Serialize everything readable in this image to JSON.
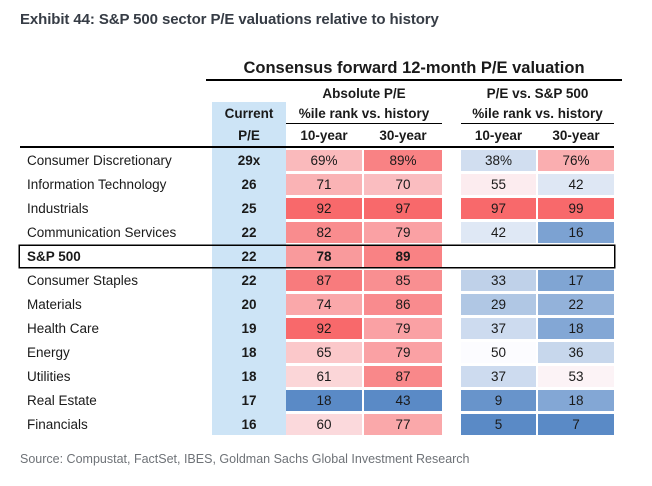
{
  "exhibit_title": "Exhibit 44: S&P 500 sector P/E valuations relative to history",
  "source": "Source: Compustat, FactSet, IBES, Goldman Sachs Global Investment Research",
  "colors": {
    "heat_red": "#f8696b",
    "heat_mid": "#fcfcff",
    "heat_blue": "#5a8ac6",
    "current_column_bg": "#cde4f6",
    "title_text": "#363c45",
    "source_text": "#6e7277",
    "rule_black": "#000000"
  },
  "table": {
    "title": "Consensus forward 12-month P/E valuation",
    "current_header": {
      "line1": "Current",
      "line2": "P/E"
    },
    "groups": [
      {
        "label": "Absolute P/E",
        "subheader": "%ile rank vs. history",
        "cols": [
          "10-year",
          "30-year"
        ]
      },
      {
        "label": "P/E vs. S&P 500",
        "subheader": "%ile rank vs. history",
        "cols": [
          "10-year",
          "30-year"
        ]
      }
    ],
    "rows": [
      {
        "label": "Consumer Discretionary",
        "pe": "29x",
        "bold": false,
        "boxed": false,
        "cells": [
          {
            "v": 69,
            "t": "69%"
          },
          {
            "v": 89,
            "t": "89%"
          },
          {
            "v": 38,
            "t": "38%"
          },
          {
            "v": 76,
            "t": "76%"
          }
        ]
      },
      {
        "label": "Information Technology",
        "pe": "26",
        "bold": false,
        "boxed": false,
        "cells": [
          {
            "v": 71,
            "t": "71"
          },
          {
            "v": 70,
            "t": "70"
          },
          {
            "v": 55,
            "t": "55"
          },
          {
            "v": 42,
            "t": "42"
          }
        ]
      },
      {
        "label": "Industrials",
        "pe": "25",
        "bold": false,
        "boxed": false,
        "cells": [
          {
            "v": 92,
            "t": "92"
          },
          {
            "v": 97,
            "t": "97"
          },
          {
            "v": 97,
            "t": "97"
          },
          {
            "v": 99,
            "t": "99"
          }
        ]
      },
      {
        "label": "Communication Services",
        "pe": "22",
        "bold": false,
        "boxed": false,
        "cells": [
          {
            "v": 82,
            "t": "82"
          },
          {
            "v": 79,
            "t": "79"
          },
          {
            "v": 42,
            "t": "42"
          },
          {
            "v": 16,
            "t": "16"
          }
        ]
      },
      {
        "label": "S&P 500",
        "pe": "22",
        "bold": true,
        "boxed": true,
        "cells": [
          {
            "v": 78,
            "t": "78"
          },
          {
            "v": 89,
            "t": "89"
          },
          {
            "v": null,
            "t": ""
          },
          {
            "v": null,
            "t": ""
          }
        ]
      },
      {
        "label": "Consumer Staples",
        "pe": "22",
        "bold": false,
        "boxed": false,
        "cells": [
          {
            "v": 87,
            "t": "87"
          },
          {
            "v": 85,
            "t": "85"
          },
          {
            "v": 33,
            "t": "33"
          },
          {
            "v": 17,
            "t": "17"
          }
        ]
      },
      {
        "label": "Materials",
        "pe": "20",
        "bold": false,
        "boxed": false,
        "cells": [
          {
            "v": 74,
            "t": "74"
          },
          {
            "v": 86,
            "t": "86"
          },
          {
            "v": 29,
            "t": "29"
          },
          {
            "v": 22,
            "t": "22"
          }
        ]
      },
      {
        "label": "Health Care",
        "pe": "19",
        "bold": false,
        "boxed": false,
        "cells": [
          {
            "v": 92,
            "t": "92"
          },
          {
            "v": 79,
            "t": "79"
          },
          {
            "v": 37,
            "t": "37"
          },
          {
            "v": 18,
            "t": "18"
          }
        ]
      },
      {
        "label": "Energy",
        "pe": "18",
        "bold": false,
        "boxed": false,
        "cells": [
          {
            "v": 65,
            "t": "65"
          },
          {
            "v": 79,
            "t": "79"
          },
          {
            "v": 50,
            "t": "50"
          },
          {
            "v": 36,
            "t": "36"
          }
        ]
      },
      {
        "label": "Utilities",
        "pe": "18",
        "bold": false,
        "boxed": false,
        "cells": [
          {
            "v": 61,
            "t": "61"
          },
          {
            "v": 87,
            "t": "87"
          },
          {
            "v": 37,
            "t": "37"
          },
          {
            "v": 53,
            "t": "53"
          }
        ]
      },
      {
        "label": "Real Estate",
        "pe": "17",
        "bold": false,
        "boxed": false,
        "cells": [
          {
            "v": 18,
            "t": "18"
          },
          {
            "v": 43,
            "t": "43"
          },
          {
            "v": 9,
            "t": "9"
          },
          {
            "v": 18,
            "t": "18"
          }
        ]
      },
      {
        "label": "Financials",
        "pe": "16",
        "bold": false,
        "boxed": false,
        "cells": [
          {
            "v": 60,
            "t": "60"
          },
          {
            "v": 77,
            "t": "77"
          },
          {
            "v": 5,
            "t": "5"
          },
          {
            "v": 7,
            "t": "7"
          }
        ]
      }
    ]
  },
  "chart_data": {
    "type": "table",
    "title": "Consensus forward 12-month P/E valuation",
    "columns": [
      "Sector",
      "Current P/E",
      "Absolute P/E %ile rank 10-year",
      "Absolute P/E %ile rank 30-year",
      "P/E vs. S&P 500 %ile rank 10-year",
      "P/E vs. S&P 500 %ile rank 30-year"
    ],
    "rows": [
      [
        "Consumer Discretionary",
        "29x",
        69,
        89,
        38,
        76
      ],
      [
        "Information Technology",
        "26",
        71,
        70,
        55,
        42
      ],
      [
        "Industrials",
        "25",
        92,
        97,
        97,
        99
      ],
      [
        "Communication Services",
        "22",
        82,
        79,
        42,
        16
      ],
      [
        "S&P 500",
        "22",
        78,
        89,
        null,
        null
      ],
      [
        "Consumer Staples",
        "22",
        87,
        85,
        33,
        17
      ],
      [
        "Materials",
        "20",
        74,
        86,
        29,
        22
      ],
      [
        "Health Care",
        "19",
        92,
        79,
        37,
        18
      ],
      [
        "Energy",
        "18",
        65,
        79,
        50,
        36
      ],
      [
        "Utilities",
        "18",
        61,
        87,
        37,
        53
      ],
      [
        "Real Estate",
        "17",
        18,
        43,
        9,
        18
      ],
      [
        "Financials",
        "16",
        60,
        77,
        5,
        7
      ]
    ],
    "heatmap_rule": "per column: min value = blue #5a8ac6, 50 = white, max value = red #f8696b; S&P 500 relative cells blank",
    "legend_position": "none",
    "grid": false
  }
}
